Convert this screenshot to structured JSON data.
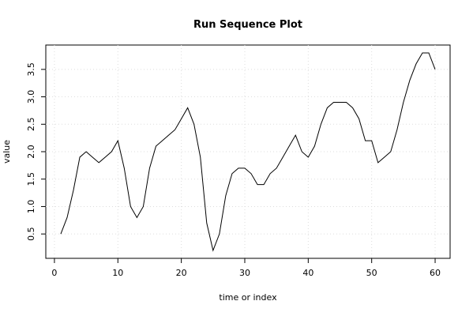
{
  "chart_data": {
    "type": "line",
    "title": "Run Sequence Plot",
    "x_label": "time or index",
    "y_label": "value",
    "x": [
      1,
      2,
      3,
      4,
      5,
      6,
      7,
      8,
      9,
      10,
      11,
      12,
      13,
      14,
      15,
      16,
      17,
      18,
      19,
      20,
      21,
      22,
      23,
      24,
      25,
      26,
      27,
      28,
      29,
      30,
      31,
      32,
      33,
      34,
      35,
      36,
      37,
      38,
      39,
      40,
      41,
      42,
      43,
      44,
      45,
      46,
      47,
      48,
      49,
      50,
      51,
      52,
      53,
      54,
      55,
      56,
      57,
      58,
      59,
      60
    ],
    "series": [
      {
        "color": "#000000",
        "values": [
          0.5,
          0.8,
          1.3,
          1.9,
          2.0,
          1.9,
          1.8,
          1.9,
          2.0,
          2.2,
          1.7,
          1.0,
          0.8,
          1.0,
          1.7,
          2.1,
          2.2,
          2.3,
          2.4,
          2.6,
          2.8,
          2.5,
          1.9,
          0.7,
          0.2,
          0.5,
          1.2,
          1.6,
          1.7,
          1.7,
          1.6,
          1.4,
          1.4,
          1.6,
          1.7,
          1.9,
          2.1,
          2.3,
          2.0,
          1.9,
          2.1,
          2.5,
          2.8,
          2.9,
          2.9,
          2.9,
          2.8,
          2.6,
          2.2,
          2.2,
          1.8,
          1.9,
          2.0,
          2.4,
          2.9,
          3.3,
          3.6,
          3.8,
          3.8,
          3.5
        ]
      }
    ],
    "xlim": [
      -1.36,
      62.36
    ],
    "xticks": [
      0,
      10,
      20,
      30,
      40,
      50,
      60
    ],
    "ylim": [
      0.056,
      3.944
    ],
    "yticks": [
      0.5,
      {
        "value": 1.0,
        "label": "1.0"
      },
      1.5,
      {
        "value": 2.0,
        "label": "2.0"
      },
      2.5,
      {
        "value": 3.0,
        "label": "3.0"
      },
      3.5
    ],
    "grid": true
  }
}
